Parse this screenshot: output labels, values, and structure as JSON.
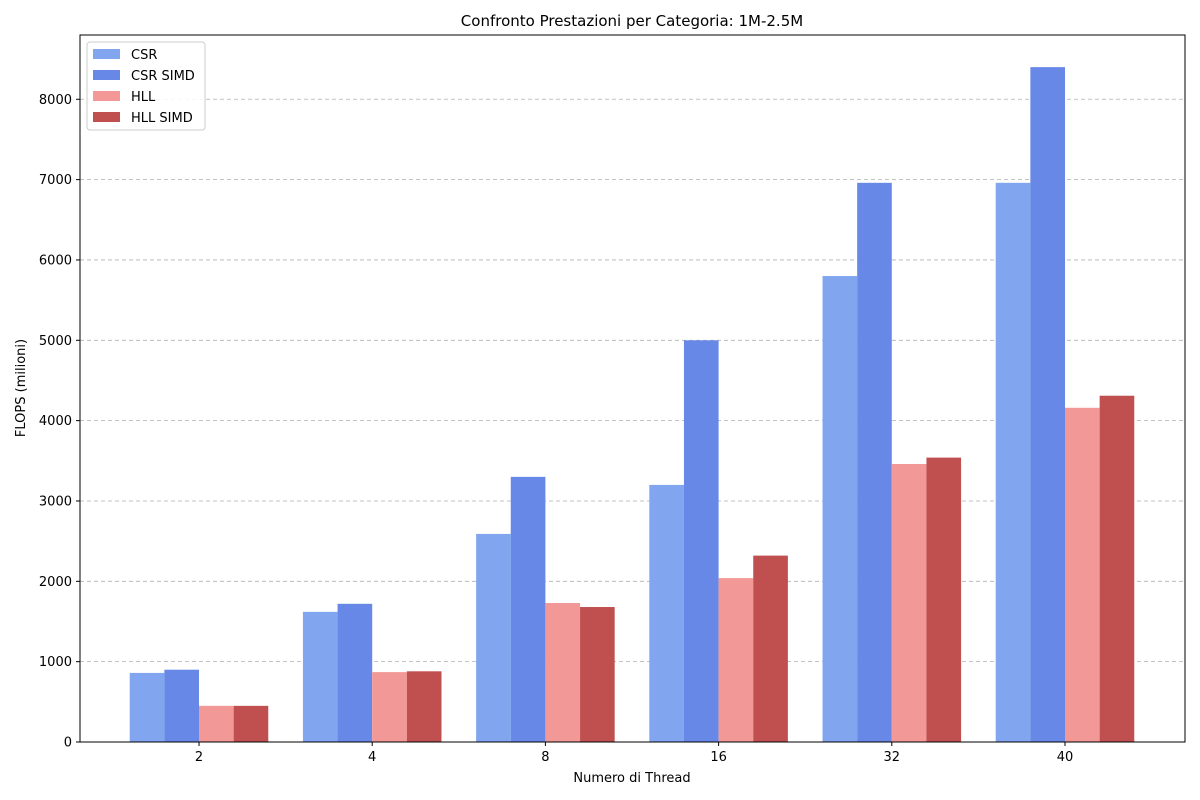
{
  "chart_data": {
    "type": "bar",
    "title": "Confronto Prestazioni per Categoria: 1M-2.5M",
    "xlabel": "Numero di Thread",
    "ylabel": "FLOPS (milioni)",
    "categories": [
      "2",
      "4",
      "8",
      "16",
      "32",
      "40"
    ],
    "ylim": [
      0,
      8800
    ],
    "yticks": [
      0,
      1000,
      2000,
      3000,
      4000,
      5000,
      6000,
      7000,
      8000
    ],
    "grid": "y-dashed",
    "legend_position": "top-left",
    "series": [
      {
        "name": "CSR",
        "color": "#81a6ef",
        "values": [
          860,
          1620,
          2590,
          3200,
          5800,
          6960
        ]
      },
      {
        "name": "CSR SIMD",
        "color": "#6788e6",
        "values": [
          900,
          1720,
          3300,
          5000,
          6960,
          8400
        ]
      },
      {
        "name": "HLL",
        "color": "#f29998",
        "values": [
          450,
          870,
          1730,
          2040,
          3460,
          4160
        ]
      },
      {
        "name": "HLL SIMD",
        "color": "#c04f50",
        "values": [
          450,
          880,
          1680,
          2320,
          3540,
          4310
        ]
      }
    ]
  }
}
